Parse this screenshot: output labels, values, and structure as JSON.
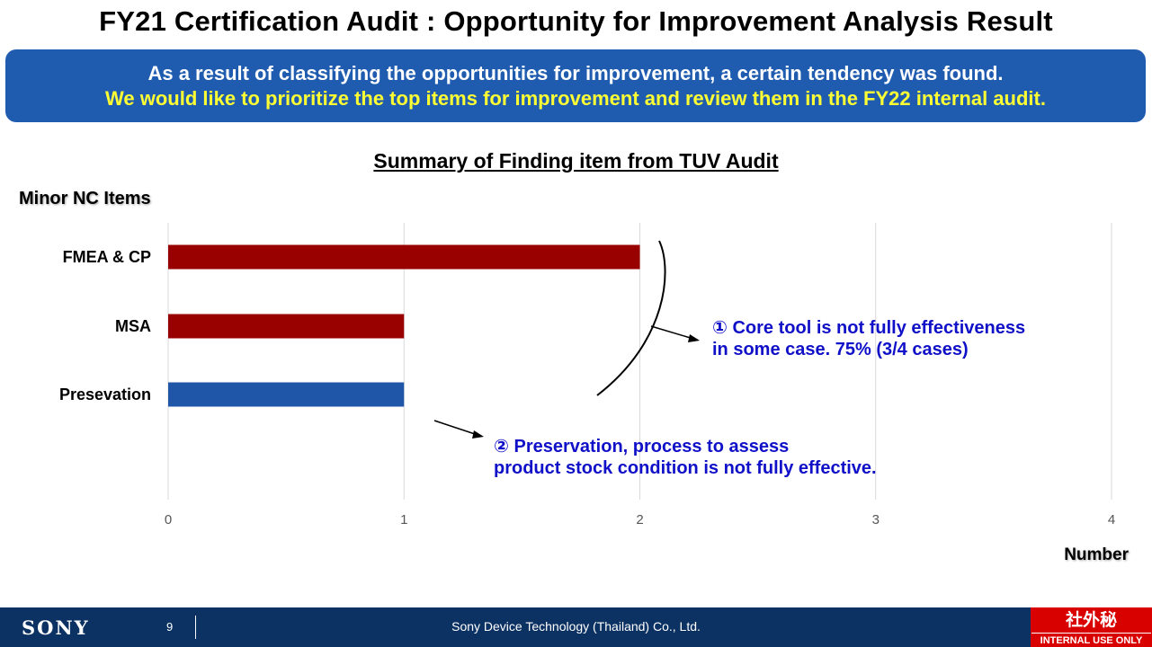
{
  "slide": {
    "title": "FY21 Certification Audit : Opportunity for Improvement Analysis Result",
    "banner_line1": "As a result of classifying the opportunities for improvement, a certain tendency was found.",
    "banner_line2": "We would like to prioritize the top items for improvement and review them in the FY22 internal audit.",
    "section_label": "Minor NC Items",
    "unit_label": "Number"
  },
  "chart_data": {
    "type": "bar",
    "orientation": "horizontal",
    "title": "Summary of Finding item from TUV Audit",
    "categories": [
      "FMEA & CP",
      "MSA",
      "Presevation"
    ],
    "values": [
      2,
      1,
      1
    ],
    "bar_colors": [
      "#990000",
      "#990000",
      "#1f56a8"
    ],
    "xlabel": "Number",
    "ylabel": "Minor NC Items",
    "xlim": [
      0,
      4
    ],
    "xticks": [
      "0",
      "1",
      "2",
      "3",
      "4"
    ],
    "grid": true
  },
  "annotations": {
    "note1_line1": "① Core tool is not fully effectiveness",
    "note1_line2": "in some case. 75% (3/4 cases)",
    "note2_line1": "② Preservation, process to assess",
    "note2_line2": "product stock condition is not fully effective."
  },
  "footer": {
    "logo": "SONY",
    "page_number": "9",
    "company": "Sony Device Technology (Thailand) Co., Ltd.",
    "stamp_top": "社外秘",
    "stamp_bottom": "INTERNAL USE ONLY"
  }
}
